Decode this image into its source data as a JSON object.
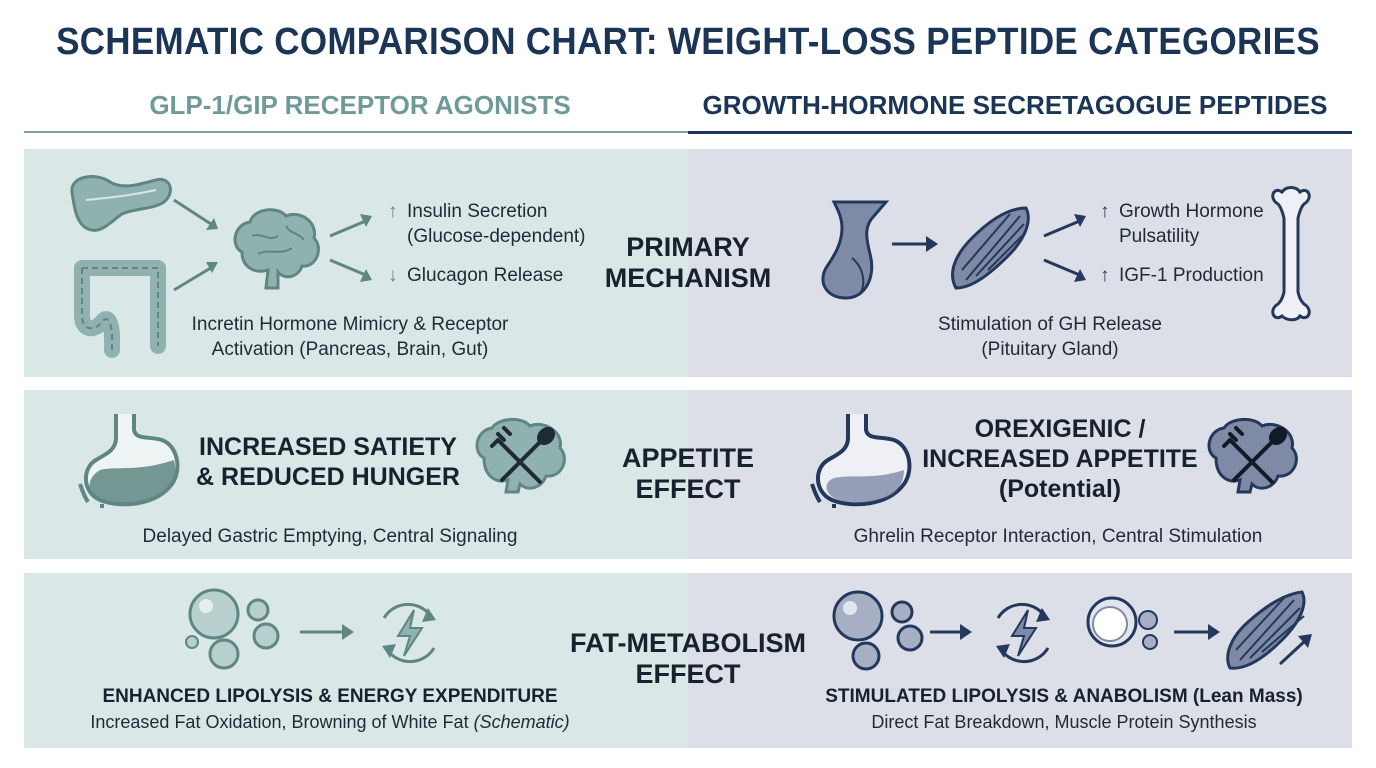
{
  "title": "SCHEMATIC COMPARISON CHART: WEIGHT-LOSS PEPTIDE CATEGORIES",
  "columns": {
    "left": "GLP-1/GIP RECEPTOR AGONISTS",
    "right": "GROWTH-HORMONE SECRETAGOGUE PEPTIDES"
  },
  "rows": {
    "mechanism": {
      "label_line1": "PRIMARY",
      "label_line2": "MECHANISM",
      "left": {
        "effect1_line1": "Insulin Secretion",
        "effect1_line2": "(Glucose-dependent)",
        "effect2": "Glucagon Release",
        "caption_line1": "Incretin Hormone Mimicry & Receptor",
        "caption_line2": "Activation (Pancreas, Brain, Gut)"
      },
      "right": {
        "effect1_line1": "Growth Hormone",
        "effect1_line2": "Pulsatility",
        "effect2": "IGF-1 Production",
        "caption_line1": "Stimulation of GH Release",
        "caption_line2": "(Pituitary Gland)"
      }
    },
    "appetite": {
      "label_line1": "APPETITE",
      "label_line2": "EFFECT",
      "left": {
        "heading_line1": "INCREASED SATIETY",
        "heading_line2": "& REDUCED HUNGER",
        "caption": "Delayed Gastric Emptying, Central Signaling"
      },
      "right": {
        "heading_line1": "OREXIGENIC /",
        "heading_line2": "INCREASED APPETITE",
        "heading_line3": "(Potential)",
        "caption": "Ghrelin Receptor Interaction, Central Stimulation"
      }
    },
    "fat": {
      "label_line1": "FAT-METABOLISM",
      "label_line2": "EFFECT",
      "left": {
        "heading": "ENHANCED LIPOLYSIS & ENERGY EXPENDITURE",
        "caption_main": "Increased Fat Oxidation, Browning of White Fat ",
        "caption_italic": "(Schematic)"
      },
      "right": {
        "heading": "STIMULATED LIPOLYSIS & ANABOLISM (Lean Mass)",
        "caption": "Direct Fat Breakdown, Muscle Protein Synthesis"
      }
    }
  },
  "arrows": {
    "up": "↑",
    "down": "↓"
  },
  "icons": {
    "left": [
      "pancreas-icon",
      "intestine-icon",
      "brain-icon",
      "stomach-icon",
      "brain-fork-spoon-icon",
      "fat-cells-icon",
      "energy-cycle-icon"
    ],
    "right": [
      "pituitary-icon",
      "muscle-icon",
      "bone-icon",
      "stomach-icon",
      "brain-fork-spoon-icon",
      "fat-cells-icon",
      "energy-cycle-icon",
      "fat-cell-icon",
      "muscle-icon"
    ]
  },
  "colors": {
    "title": "#1b3557",
    "left_heading": "#6f9a98",
    "right_heading": "#1b3557",
    "left_panel": "#d9e8e6",
    "right_panel": "#dcdfe8",
    "left_icon": "#8fb1af",
    "right_icon": "#7e8aa6",
    "left_stroke": "#5f8683",
    "right_stroke": "#23385b"
  }
}
